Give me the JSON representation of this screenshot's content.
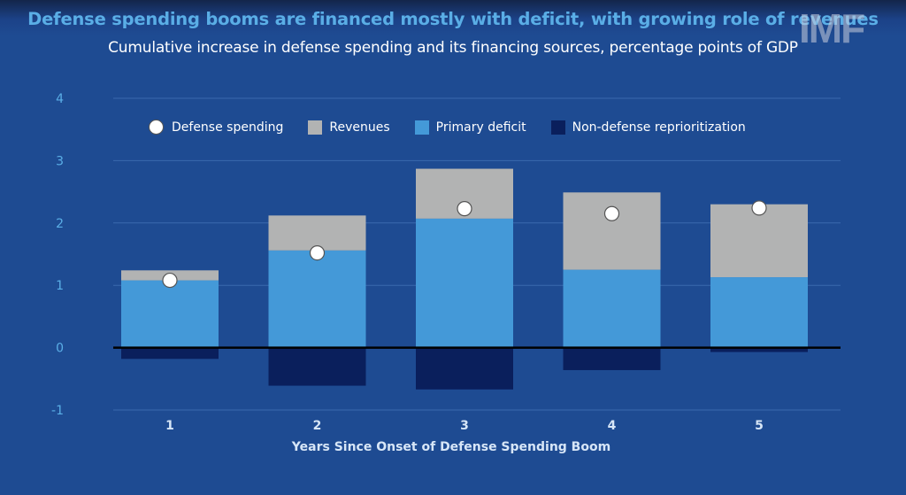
{
  "chart_data": {
    "type": "bar",
    "stacked": true,
    "title": "Defense spending booms are financed mostly with deficit, with growing role of revenues",
    "subtitle": "Cumulative increase in defense spending and its financing sources, percentage points of GDP",
    "xlabel": "Years Since Onset of Defense Spending Boom",
    "ylabel": "",
    "categories": [
      "1",
      "2",
      "3",
      "4",
      "5"
    ],
    "ylim": [
      -1,
      4
    ],
    "yticks": [
      4,
      3,
      2,
      1,
      0,
      -1
    ],
    "grid": true,
    "legend_position": "top",
    "series": [
      {
        "name": "Primary deficit",
        "kind": "bar",
        "color": "#4499d8",
        "values": [
          1.08,
          1.56,
          2.07,
          1.25,
          1.13
        ]
      },
      {
        "name": "Revenues",
        "kind": "bar",
        "color": "#b2b3b3",
        "values": [
          0.16,
          0.56,
          0.8,
          1.24,
          1.17
        ]
      },
      {
        "name": "Non-defense reprioritization",
        "kind": "bar",
        "color": "#0a1f5c",
        "values": [
          -0.18,
          -0.61,
          -0.67,
          -0.36,
          -0.07
        ]
      },
      {
        "name": "Defense spending",
        "kind": "marker",
        "color": "#ffffff",
        "values": [
          1.08,
          1.52,
          2.23,
          2.15,
          2.24
        ]
      }
    ]
  },
  "legend": [
    {
      "label": "Defense spending",
      "kind": "dot",
      "color": "#ffffff"
    },
    {
      "label": "Revenues",
      "kind": "square",
      "color": "#b2b3b3"
    },
    {
      "label": "Primary deficit",
      "kind": "square",
      "color": "#4499d8"
    },
    {
      "label": "Non-defense reprioritization",
      "kind": "square",
      "color": "#0a1f5c"
    }
  ],
  "watermark": "IMF"
}
